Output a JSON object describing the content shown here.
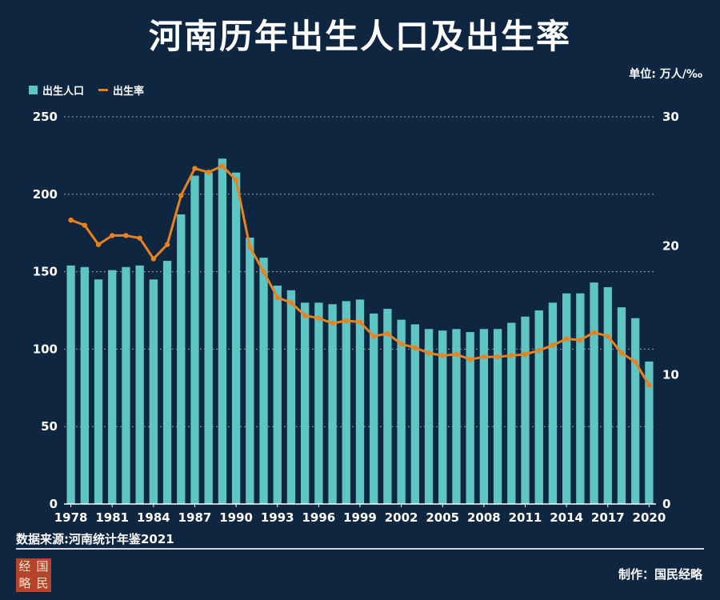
{
  "title": "河南历年出生人口及出生率",
  "unit_label": "单位: 万人/‰",
  "legend": {
    "bar": "出生人口",
    "line": "出生率"
  },
  "source": "数据来源:河南统计年鉴2021",
  "maker": "制作：国民经略",
  "logo": {
    "chars": [
      "经",
      "国",
      "略",
      "民"
    ]
  },
  "colors": {
    "background": "#0f2641",
    "bar": "#5ec4c4",
    "line": "#e8821e",
    "grid": "#c8d0d8"
  },
  "chart_data": {
    "type": "bar+line",
    "title": "河南历年出生人口及出生率",
    "categories": [
      1978,
      1979,
      1980,
      1981,
      1982,
      1983,
      1984,
      1985,
      1986,
      1987,
      1988,
      1989,
      1990,
      1991,
      1992,
      1993,
      1994,
      1995,
      1996,
      1997,
      1998,
      1999,
      2000,
      2001,
      2002,
      2003,
      2004,
      2005,
      2006,
      2007,
      2008,
      2009,
      2010,
      2011,
      2012,
      2013,
      2014,
      2015,
      2016,
      2017,
      2018,
      2019,
      2020
    ],
    "x_tick_labels": [
      "1978",
      "1981",
      "1984",
      "1987",
      "1990",
      "1993",
      "1996",
      "1999",
      "2002",
      "2005",
      "2008",
      "2011",
      "2014",
      "2017",
      "2020"
    ],
    "series": [
      {
        "name": "出生人口",
        "type": "bar",
        "axis": "left",
        "values": [
          154,
          153,
          145,
          151,
          153,
          154,
          145,
          157,
          187,
          212,
          214,
          223,
          214,
          172,
          159,
          141,
          138,
          130,
          130,
          129,
          131,
          132,
          123,
          126,
          119,
          116,
          113,
          112,
          113,
          111,
          113,
          113,
          117,
          121,
          125,
          130,
          136,
          136,
          143,
          140,
          127,
          120,
          92
        ]
      },
      {
        "name": "出生率",
        "type": "line",
        "axis": "right",
        "values": [
          22.0,
          21.6,
          20.1,
          20.8,
          20.8,
          20.6,
          19.0,
          20.1,
          23.9,
          26.0,
          25.7,
          26.2,
          25.1,
          19.9,
          18.0,
          16.0,
          15.6,
          14.6,
          14.4,
          14.0,
          14.2,
          14.1,
          13.0,
          13.2,
          12.4,
          12.1,
          11.7,
          11.5,
          11.6,
          11.2,
          11.4,
          11.4,
          11.5,
          11.6,
          11.9,
          12.3,
          12.8,
          12.7,
          13.3,
          13.0,
          11.7,
          11.0,
          9.2
        ]
      }
    ],
    "y_left": {
      "ylim": [
        0,
        250
      ],
      "ticks": [
        0,
        50,
        100,
        150,
        200,
        250
      ]
    },
    "y_right": {
      "ylim": [
        0,
        30
      ],
      "ticks": [
        0,
        10,
        20,
        30
      ]
    },
    "grid": true,
    "legend_position": "top-left"
  }
}
